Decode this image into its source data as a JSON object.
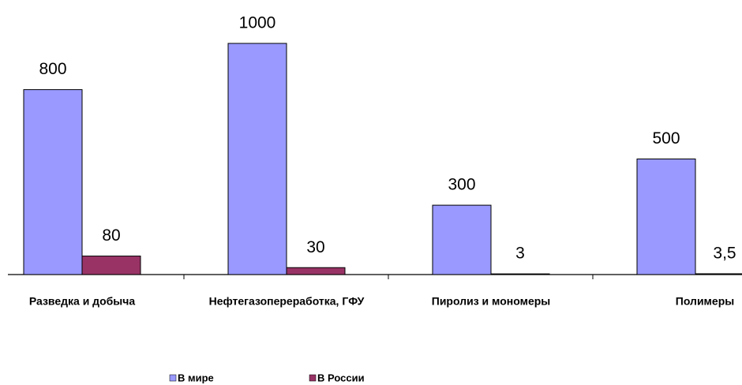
{
  "chart_data": {
    "type": "bar",
    "categories": [
      "Разведка и добыча",
      "Нефтегазопереработка, ГФУ",
      "Пиролиз и мономеры",
      "Полимеры"
    ],
    "series": [
      {
        "name": "В мире",
        "color": "#9999ff",
        "values": [
          800,
          1000,
          300,
          500
        ]
      },
      {
        "name": "В России",
        "color": "#993366",
        "values": [
          80,
          30,
          3,
          3.5
        ],
        "value_labels": [
          "80",
          "30",
          "3",
          "3,5"
        ]
      }
    ],
    "legend": "bottom"
  }
}
